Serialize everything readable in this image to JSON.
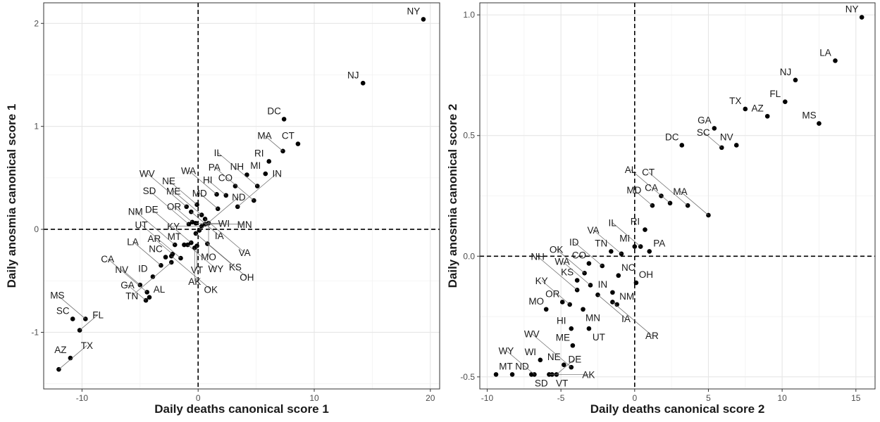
{
  "chart_data": [
    {
      "type": "scatter",
      "title": "",
      "xlabel": "Daily deaths canonical score 1",
      "ylabel": "Daily anosmia canonical score 1",
      "xlim": [
        -13.3,
        20.8
      ],
      "ylim": [
        -1.55,
        2.2
      ],
      "xticks": [
        -10,
        0,
        10,
        20
      ],
      "yticks": [
        -1,
        0,
        1,
        2
      ],
      "reference_lines": {
        "x": 0,
        "y": 0,
        "style": "dashed"
      },
      "grid": true,
      "points": [
        {
          "label": "NY",
          "x": 19.4,
          "y": 2.04
        },
        {
          "label": "NJ",
          "x": 14.2,
          "y": 1.42
        },
        {
          "label": "DC",
          "x": 7.4,
          "y": 1.07
        },
        {
          "label": "CT",
          "x": 8.6,
          "y": 0.83
        },
        {
          "label": "MA",
          "x": 7.3,
          "y": 0.76
        },
        {
          "label": "RI",
          "x": 6.1,
          "y": 0.66
        },
        {
          "label": "MI",
          "x": 5.8,
          "y": 0.54
        },
        {
          "label": "NH",
          "x": 4.2,
          "y": 0.53
        },
        {
          "label": "IL",
          "x": 5.1,
          "y": 0.42
        },
        {
          "label": "CO",
          "x": 3.2,
          "y": 0.42
        },
        {
          "label": "HI",
          "x": 2.4,
          "y": 0.33
        },
        {
          "label": "PA",
          "x": 4.8,
          "y": 0.28
        },
        {
          "label": "IN",
          "x": 3.4,
          "y": 0.22
        },
        {
          "label": "WA",
          "x": 1.6,
          "y": 0.34
        },
        {
          "label": "MD",
          "x": 1.7,
          "y": 0.2
        },
        {
          "label": "ME",
          "x": 0.3,
          "y": 0.14
        },
        {
          "label": "NE",
          "x": -0.1,
          "y": 0.24
        },
        {
          "label": "WV",
          "x": -1.0,
          "y": 0.22
        },
        {
          "label": "IA",
          "x": -0.6,
          "y": 0.17
        },
        {
          "label": "VA",
          "x": 0.6,
          "y": 0.1
        },
        {
          "label": "MO",
          "x": 0.9,
          "y": 0.06
        },
        {
          "label": "OR",
          "x": -0.5,
          "y": 0.07
        },
        {
          "label": "SD",
          "x": -0.8,
          "y": 0.05
        },
        {
          "label": "WI",
          "x": -0.2,
          "y": 0.06
        },
        {
          "label": "ND",
          "x": 0.1,
          "y": -0.01
        },
        {
          "label": "MN",
          "x": 0.6,
          "y": 0.05
        },
        {
          "label": "KY",
          "x": 0.3,
          "y": 0.03
        },
        {
          "label": "KS",
          "x": -0.2,
          "y": -0.04
        },
        {
          "label": "MT",
          "x": -1.2,
          "y": -0.15
        },
        {
          "label": "DE",
          "x": -0.6,
          "y": -0.13
        },
        {
          "label": "OH",
          "x": 0.8,
          "y": -0.14
        },
        {
          "label": "VT",
          "x": -0.1,
          "y": -0.16
        },
        {
          "label": "AK",
          "x": -0.3,
          "y": -0.18
        },
        {
          "label": "WY",
          "x": -0.9,
          "y": -0.15
        },
        {
          "label": "AR",
          "x": -2.2,
          "y": -0.24
        },
        {
          "label": "UT",
          "x": -1.5,
          "y": -0.28
        },
        {
          "label": "NM",
          "x": -2.0,
          "y": -0.15
        },
        {
          "label": "OK",
          "x": -2.3,
          "y": -0.26
        },
        {
          "label": "NC",
          "x": -2.8,
          "y": -0.27
        },
        {
          "label": "TN",
          "x": -2.3,
          "y": -0.32
        },
        {
          "label": "LA",
          "x": -3.2,
          "y": -0.35
        },
        {
          "label": "ID",
          "x": -3.9,
          "y": -0.46
        },
        {
          "label": "NV",
          "x": -5.0,
          "y": -0.54
        },
        {
          "label": "CA",
          "x": -4.4,
          "y": -0.61
        },
        {
          "label": "AL",
          "x": -4.2,
          "y": -0.66
        },
        {
          "label": "GA",
          "x": -4.5,
          "y": -0.69
        },
        {
          "label": "SC",
          "x": -10.8,
          "y": -0.87
        },
        {
          "label": "MS",
          "x": -9.7,
          "y": -0.87
        },
        {
          "label": "FL",
          "x": -10.2,
          "y": -0.98
        },
        {
          "label": "AZ",
          "x": -11.0,
          "y": -1.25
        },
        {
          "label": "TX",
          "x": -12.0,
          "y": -1.36
        }
      ]
    },
    {
      "type": "scatter",
      "title": "",
      "xlabel": "Daily deaths canonical score 2",
      "ylabel": "Daily anosmia canonical score 2",
      "xlim": [
        -10.5,
        16.3
      ],
      "ylim": [
        -0.55,
        1.05
      ],
      "xticks": [
        -10,
        -5,
        0,
        5,
        10,
        15
      ],
      "yticks": [
        -0.5,
        0.0,
        0.5,
        1.0
      ],
      "reference_lines": {
        "x": 0,
        "y": 0,
        "style": "dashed"
      },
      "grid": true,
      "points": [
        {
          "label": "NY",
          "x": 15.4,
          "y": 0.99
        },
        {
          "label": "LA",
          "x": 13.6,
          "y": 0.81
        },
        {
          "label": "NJ",
          "x": 10.9,
          "y": 0.73
        },
        {
          "label": "FL",
          "x": 10.2,
          "y": 0.64
        },
        {
          "label": "TX",
          "x": 7.5,
          "y": 0.61
        },
        {
          "label": "AZ",
          "x": 9.0,
          "y": 0.58
        },
        {
          "label": "MS",
          "x": 12.5,
          "y": 0.55
        },
        {
          "label": "GA",
          "x": 5.4,
          "y": 0.53
        },
        {
          "label": "NV",
          "x": 6.9,
          "y": 0.46
        },
        {
          "label": "SC",
          "x": 5.9,
          "y": 0.45
        },
        {
          "label": "DC",
          "x": 3.2,
          "y": 0.46
        },
        {
          "label": "CA",
          "x": 1.8,
          "y": 0.25
        },
        {
          "label": "AL",
          "x": 2.4,
          "y": 0.22
        },
        {
          "label": "MD",
          "x": 1.2,
          "y": 0.21
        },
        {
          "label": "CT",
          "x": 3.6,
          "y": 0.21
        },
        {
          "label": "MA",
          "x": 5.0,
          "y": 0.17
        },
        {
          "label": "RI",
          "x": 0.7,
          "y": 0.11
        },
        {
          "label": "MI",
          "x": 0.0,
          "y": 0.04
        },
        {
          "label": "IL",
          "x": 0.4,
          "y": 0.04
        },
        {
          "label": "PA",
          "x": 1.0,
          "y": 0.02
        },
        {
          "label": "TN",
          "x": -1.6,
          "y": 0.02
        },
        {
          "label": "VA",
          "x": -0.9,
          "y": 0.01
        },
        {
          "label": "CO",
          "x": -3.1,
          "y": -0.03
        },
        {
          "label": "ID",
          "x": -2.2,
          "y": -0.04
        },
        {
          "label": "OK",
          "x": -3.4,
          "y": -0.07
        },
        {
          "label": "NC",
          "x": -1.1,
          "y": -0.08
        },
        {
          "label": "KS",
          "x": -3.9,
          "y": -0.1
        },
        {
          "label": "WA",
          "x": -3.0,
          "y": -0.12
        },
        {
          "label": "OH",
          "x": 0.1,
          "y": -0.11
        },
        {
          "label": "IN",
          "x": -1.5,
          "y": -0.15
        },
        {
          "label": "NH",
          "x": -3.9,
          "y": -0.14
        },
        {
          "label": "IA",
          "x": -2.5,
          "y": -0.16
        },
        {
          "label": "OR",
          "x": -4.9,
          "y": -0.19
        },
        {
          "label": "AR",
          "x": -1.5,
          "y": -0.19
        },
        {
          "label": "MO",
          "x": -6.0,
          "y": -0.22
        },
        {
          "label": "KY",
          "x": -4.4,
          "y": -0.2
        },
        {
          "label": "MN",
          "x": -3.5,
          "y": -0.22
        },
        {
          "label": "NM",
          "x": -1.2,
          "y": -0.2
        },
        {
          "label": "ME",
          "x": -4.2,
          "y": -0.37
        },
        {
          "label": "HI",
          "x": -4.3,
          "y": -0.3
        },
        {
          "label": "UT",
          "x": -3.1,
          "y": -0.3
        },
        {
          "label": "WI",
          "x": -6.4,
          "y": -0.43
        },
        {
          "label": "NE",
          "x": -4.8,
          "y": -0.45
        },
        {
          "label": "WV",
          "x": -4.3,
          "y": -0.46
        },
        {
          "label": "MT",
          "x": -9.4,
          "y": -0.49
        },
        {
          "label": "ND",
          "x": -8.3,
          "y": -0.49
        },
        {
          "label": "WY",
          "x": -6.8,
          "y": -0.49
        },
        {
          "label": "SD",
          "x": -7.0,
          "y": -0.49
        },
        {
          "label": "VT",
          "x": -5.6,
          "y": -0.49
        },
        {
          "label": "AK",
          "x": -5.8,
          "y": -0.49
        },
        {
          "label": "DE",
          "x": -5.3,
          "y": -0.49
        }
      ]
    }
  ]
}
